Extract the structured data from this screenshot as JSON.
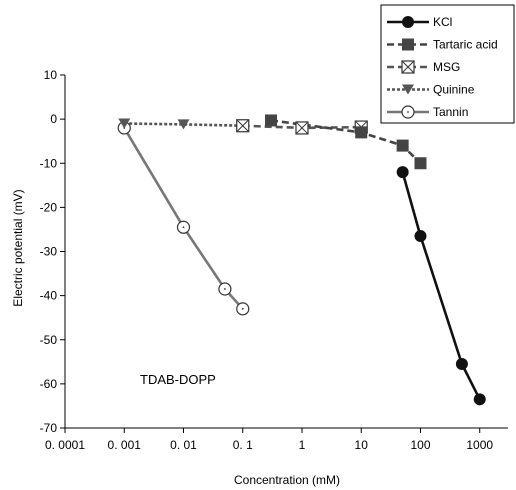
{
  "chart_data": {
    "type": "line",
    "title": "",
    "xlabel": "Concentration (mM)",
    "ylabel": "Electric potential (mV)",
    "x_scale": "log",
    "xlim": [
      0.0001,
      3000
    ],
    "ylim": [
      -70,
      10
    ],
    "x_ticks": [
      0.0001,
      0.001,
      0.01,
      0.1,
      1,
      10,
      100,
      1000
    ],
    "x_tick_labels": [
      "0. 0001",
      "0. 001",
      "0. 01",
      "0. 1",
      "1",
      "10",
      "100",
      "1000"
    ],
    "y_ticks": [
      10,
      0,
      -10,
      -20,
      -30,
      -40,
      -50,
      -60,
      -70
    ],
    "y_tick_labels": [
      "10",
      "0",
      "-10",
      "-20",
      "-30",
      "-40",
      "-50",
      "-60",
      "-70"
    ],
    "grid": false,
    "legend_position": "top-right",
    "annotation": "TDAB-DOPP",
    "series": [
      {
        "name": "KCl",
        "color": "#111111",
        "marker": "filled-circle",
        "line": "solid",
        "x": [
          50,
          100,
          500,
          1000
        ],
        "y": [
          -12,
          -26.5,
          -55.5,
          -63.5
        ]
      },
      {
        "name": "Tartaric acid",
        "color": "#444444",
        "marker": "filled-square",
        "line": "dashed",
        "x": [
          0.3,
          10,
          50,
          100
        ],
        "y": [
          -0.3,
          -3,
          -6,
          -10
        ]
      },
      {
        "name": "MSG",
        "color": "#555555",
        "marker": "crossed-square",
        "line": "dashed",
        "x": [
          0.1,
          1,
          10
        ],
        "y": [
          -1.5,
          -2,
          -1.8
        ]
      },
      {
        "name": "Quinine",
        "color": "#555555",
        "marker": "down-triangle",
        "line": "dotted",
        "x": [
          0.001,
          0.01,
          0.1
        ],
        "y": [
          -1,
          -1.2,
          -1.5
        ]
      },
      {
        "name": "Tannin",
        "color": "#777777",
        "marker": "open-circle",
        "line": "solid",
        "x": [
          0.001,
          0.01,
          0.05,
          0.1
        ],
        "y": [
          -2,
          -24.5,
          -38.5,
          -43
        ]
      }
    ]
  }
}
